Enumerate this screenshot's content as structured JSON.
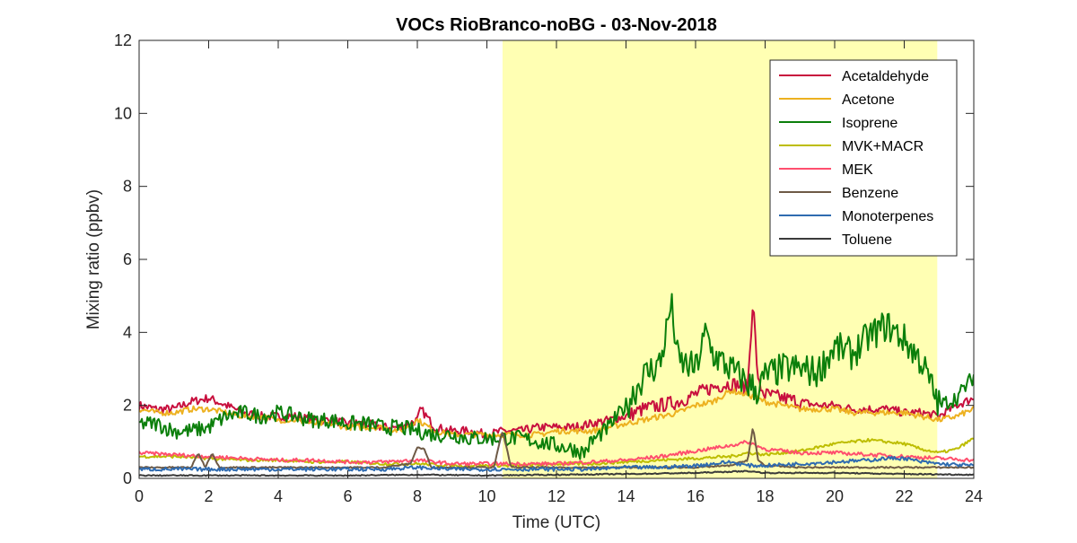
{
  "chart_data": {
    "type": "line",
    "title": "VOCs RioBranco-noBG - 03-Nov-2018",
    "xlabel": "Time (UTC)",
    "ylabel": "Mixing ratio (ppbv)",
    "xlim": [
      0,
      24
    ],
    "ylim": [
      0,
      12
    ],
    "xticks": [
      0,
      2,
      4,
      6,
      8,
      10,
      12,
      14,
      16,
      18,
      20,
      22,
      24
    ],
    "yticks": [
      0,
      2,
      4,
      6,
      8,
      10,
      12
    ],
    "xtick_labels": [
      "0",
      "2",
      "4",
      "6",
      "8",
      "10",
      "12",
      "14",
      "16",
      "18",
      "20",
      "22",
      "24"
    ],
    "ytick_labels": [
      "0",
      "2",
      "4",
      "6",
      "8",
      "10",
      "12"
    ],
    "grid": false,
    "legend_position": "top-right",
    "shaded_region": {
      "x_start": 10.45,
      "x_end": 22.95,
      "color": "#ffffb3"
    },
    "series": [
      {
        "name": "Acetaldehyde",
        "color": "#c8103e",
        "x": [
          0,
          0.5,
          1,
          1.5,
          2,
          2.5,
          3,
          3.5,
          4,
          4.5,
          5,
          5.5,
          6,
          6.5,
          7,
          7.5,
          8,
          8.1,
          8.5,
          9,
          9.5,
          10,
          10.5,
          11,
          11.5,
          12,
          12.5,
          13,
          13.5,
          14,
          14.5,
          15,
          15.5,
          16,
          16.5,
          17,
          17.5,
          17.65,
          17.8,
          18,
          18.5,
          19,
          19.5,
          20,
          20.5,
          21,
          21.5,
          22,
          22.5,
          23,
          23.5,
          24
        ],
        "y": [
          2.0,
          1.9,
          1.9,
          2.1,
          2.2,
          2.0,
          1.8,
          1.7,
          1.7,
          1.7,
          1.6,
          1.6,
          1.5,
          1.5,
          1.4,
          1.4,
          1.6,
          1.9,
          1.4,
          1.3,
          1.3,
          1.2,
          1.3,
          1.3,
          1.4,
          1.4,
          1.4,
          1.5,
          1.6,
          1.7,
          1.9,
          2.0,
          2.1,
          2.3,
          2.5,
          2.6,
          2.5,
          4.9,
          2.6,
          2.3,
          2.2,
          2.1,
          2.0,
          2.0,
          1.9,
          1.9,
          1.9,
          1.8,
          1.8,
          1.7,
          2.0,
          2.2
        ]
      },
      {
        "name": "Acetone",
        "color": "#edb120",
        "x": [
          0,
          0.5,
          1,
          1.5,
          2,
          2.5,
          3,
          3.5,
          4,
          4.5,
          5,
          5.5,
          6,
          6.5,
          7,
          7.5,
          8,
          8.5,
          9,
          9.5,
          10,
          10.5,
          11,
          11.5,
          12,
          12.5,
          13,
          13.5,
          14,
          14.5,
          15,
          15.5,
          16,
          16.5,
          17,
          17.5,
          18,
          18.5,
          19,
          19.5,
          20,
          20.5,
          21,
          21.5,
          22,
          22.5,
          23,
          23.5,
          24
        ],
        "y": [
          1.9,
          1.8,
          1.8,
          1.9,
          1.9,
          1.8,
          1.7,
          1.7,
          1.6,
          1.6,
          1.5,
          1.5,
          1.4,
          1.4,
          1.4,
          1.3,
          1.6,
          1.3,
          1.2,
          1.2,
          1.2,
          1.2,
          1.2,
          1.2,
          1.3,
          1.3,
          1.3,
          1.4,
          1.5,
          1.6,
          1.7,
          1.8,
          2.0,
          2.1,
          2.4,
          2.3,
          2.1,
          2.0,
          1.9,
          1.9,
          1.9,
          1.8,
          1.8,
          1.8,
          1.8,
          1.7,
          1.6,
          1.7,
          1.9
        ]
      },
      {
        "name": "Isoprene",
        "color": "#0b7f0b",
        "x": [
          0,
          0.5,
          1,
          1.5,
          2,
          2.5,
          3,
          3.5,
          4,
          4.5,
          5,
          5.5,
          6,
          6.5,
          7,
          7.5,
          8,
          8.5,
          9,
          9.5,
          10,
          10.5,
          11,
          11.5,
          12,
          12.5,
          12.8,
          13,
          13.5,
          14,
          14.5,
          15,
          15.3,
          15.5,
          16,
          16.3,
          16.5,
          17,
          17.5,
          17.8,
          18,
          18.5,
          19,
          19.5,
          20,
          20.5,
          21,
          21.5,
          22,
          22.5,
          23,
          23.5,
          24
        ],
        "y": [
          1.5,
          1.5,
          1.3,
          1.3,
          1.4,
          1.7,
          1.8,
          1.7,
          1.8,
          1.7,
          1.6,
          1.6,
          1.5,
          1.5,
          1.4,
          1.4,
          1.3,
          1.2,
          1.2,
          1.1,
          1.1,
          1.1,
          1.1,
          1.0,
          0.9,
          0.8,
          0.7,
          1.0,
          1.4,
          2.0,
          2.8,
          3.2,
          4.8,
          3.2,
          3.0,
          4.0,
          3.4,
          3.0,
          2.6,
          2.4,
          2.8,
          3.0,
          3.0,
          2.9,
          3.6,
          3.4,
          3.9,
          4.2,
          3.8,
          3.2,
          2.0,
          2.2,
          2.8
        ]
      },
      {
        "name": "MVK+MACR",
        "color": "#bdbd00",
        "x": [
          0,
          1,
          2,
          3,
          4,
          5,
          6,
          7,
          8,
          9,
          10,
          11,
          12,
          13,
          14,
          15,
          16,
          17,
          17.5,
          18,
          18.5,
          19,
          19.5,
          20,
          20.5,
          21,
          21.5,
          22,
          22.5,
          23,
          23.5,
          24
        ],
        "y": [
          0.6,
          0.6,
          0.55,
          0.5,
          0.5,
          0.45,
          0.45,
          0.4,
          0.4,
          0.35,
          0.35,
          0.35,
          0.4,
          0.4,
          0.45,
          0.5,
          0.55,
          0.6,
          0.7,
          0.65,
          0.7,
          0.75,
          0.85,
          0.95,
          1.0,
          1.05,
          1.0,
          0.95,
          0.8,
          0.7,
          0.8,
          1.1
        ]
      },
      {
        "name": "MEK",
        "color": "#ff4f6e",
        "x": [
          0,
          1,
          2,
          3,
          4,
          5,
          6,
          7,
          8,
          9,
          10,
          11,
          12,
          13,
          14,
          15,
          16,
          17,
          17.5,
          18,
          19,
          20,
          21,
          22,
          23,
          24
        ],
        "y": [
          0.7,
          0.65,
          0.6,
          0.55,
          0.5,
          0.5,
          0.45,
          0.45,
          0.5,
          0.4,
          0.4,
          0.4,
          0.4,
          0.45,
          0.5,
          0.6,
          0.75,
          0.9,
          1.0,
          0.8,
          0.7,
          0.7,
          0.65,
          0.6,
          0.55,
          0.5
        ]
      },
      {
        "name": "Benzene",
        "color": "#6e5a46",
        "x": [
          0,
          1,
          1.5,
          1.7,
          1.9,
          2.1,
          2.3,
          3,
          4,
          5,
          6,
          7,
          7.8,
          8.0,
          8.2,
          8.4,
          9,
          10,
          10.2,
          10.45,
          10.7,
          11,
          12,
          13,
          14,
          15,
          16,
          17,
          17.5,
          17.65,
          17.8,
          18,
          19,
          20,
          21,
          22,
          23,
          24
        ],
        "y": [
          0.3,
          0.3,
          0.3,
          0.7,
          0.3,
          0.7,
          0.3,
          0.3,
          0.3,
          0.3,
          0.3,
          0.3,
          0.4,
          0.85,
          0.8,
          0.3,
          0.3,
          0.3,
          0.3,
          1.3,
          0.3,
          0.3,
          0.3,
          0.3,
          0.3,
          0.3,
          0.3,
          0.35,
          0.5,
          1.4,
          0.5,
          0.35,
          0.3,
          0.3,
          0.3,
          0.3,
          0.3,
          0.3
        ]
      },
      {
        "name": "Monoterpenes",
        "color": "#2f6bb0",
        "x": [
          0,
          1,
          2,
          3,
          4,
          5,
          6,
          7,
          8,
          9,
          10,
          11,
          12,
          13,
          14,
          15,
          16,
          16.5,
          17,
          17.5,
          18,
          19,
          20,
          21,
          21.5,
          22,
          22.5,
          23,
          24
        ],
        "y": [
          0.25,
          0.25,
          0.25,
          0.25,
          0.25,
          0.25,
          0.25,
          0.25,
          0.3,
          0.25,
          0.25,
          0.25,
          0.25,
          0.25,
          0.3,
          0.3,
          0.35,
          0.4,
          0.45,
          0.35,
          0.35,
          0.4,
          0.45,
          0.5,
          0.55,
          0.55,
          0.45,
          0.4,
          0.35
        ]
      },
      {
        "name": "Toluene",
        "color": "#3a3a3a",
        "x": [
          0,
          2,
          4,
          6,
          8,
          10,
          12,
          14,
          16,
          17.5,
          18,
          20,
          22,
          24
        ],
        "y": [
          0.08,
          0.08,
          0.08,
          0.08,
          0.1,
          0.08,
          0.1,
          0.12,
          0.15,
          0.2,
          0.15,
          0.15,
          0.12,
          0.1
        ]
      }
    ]
  }
}
